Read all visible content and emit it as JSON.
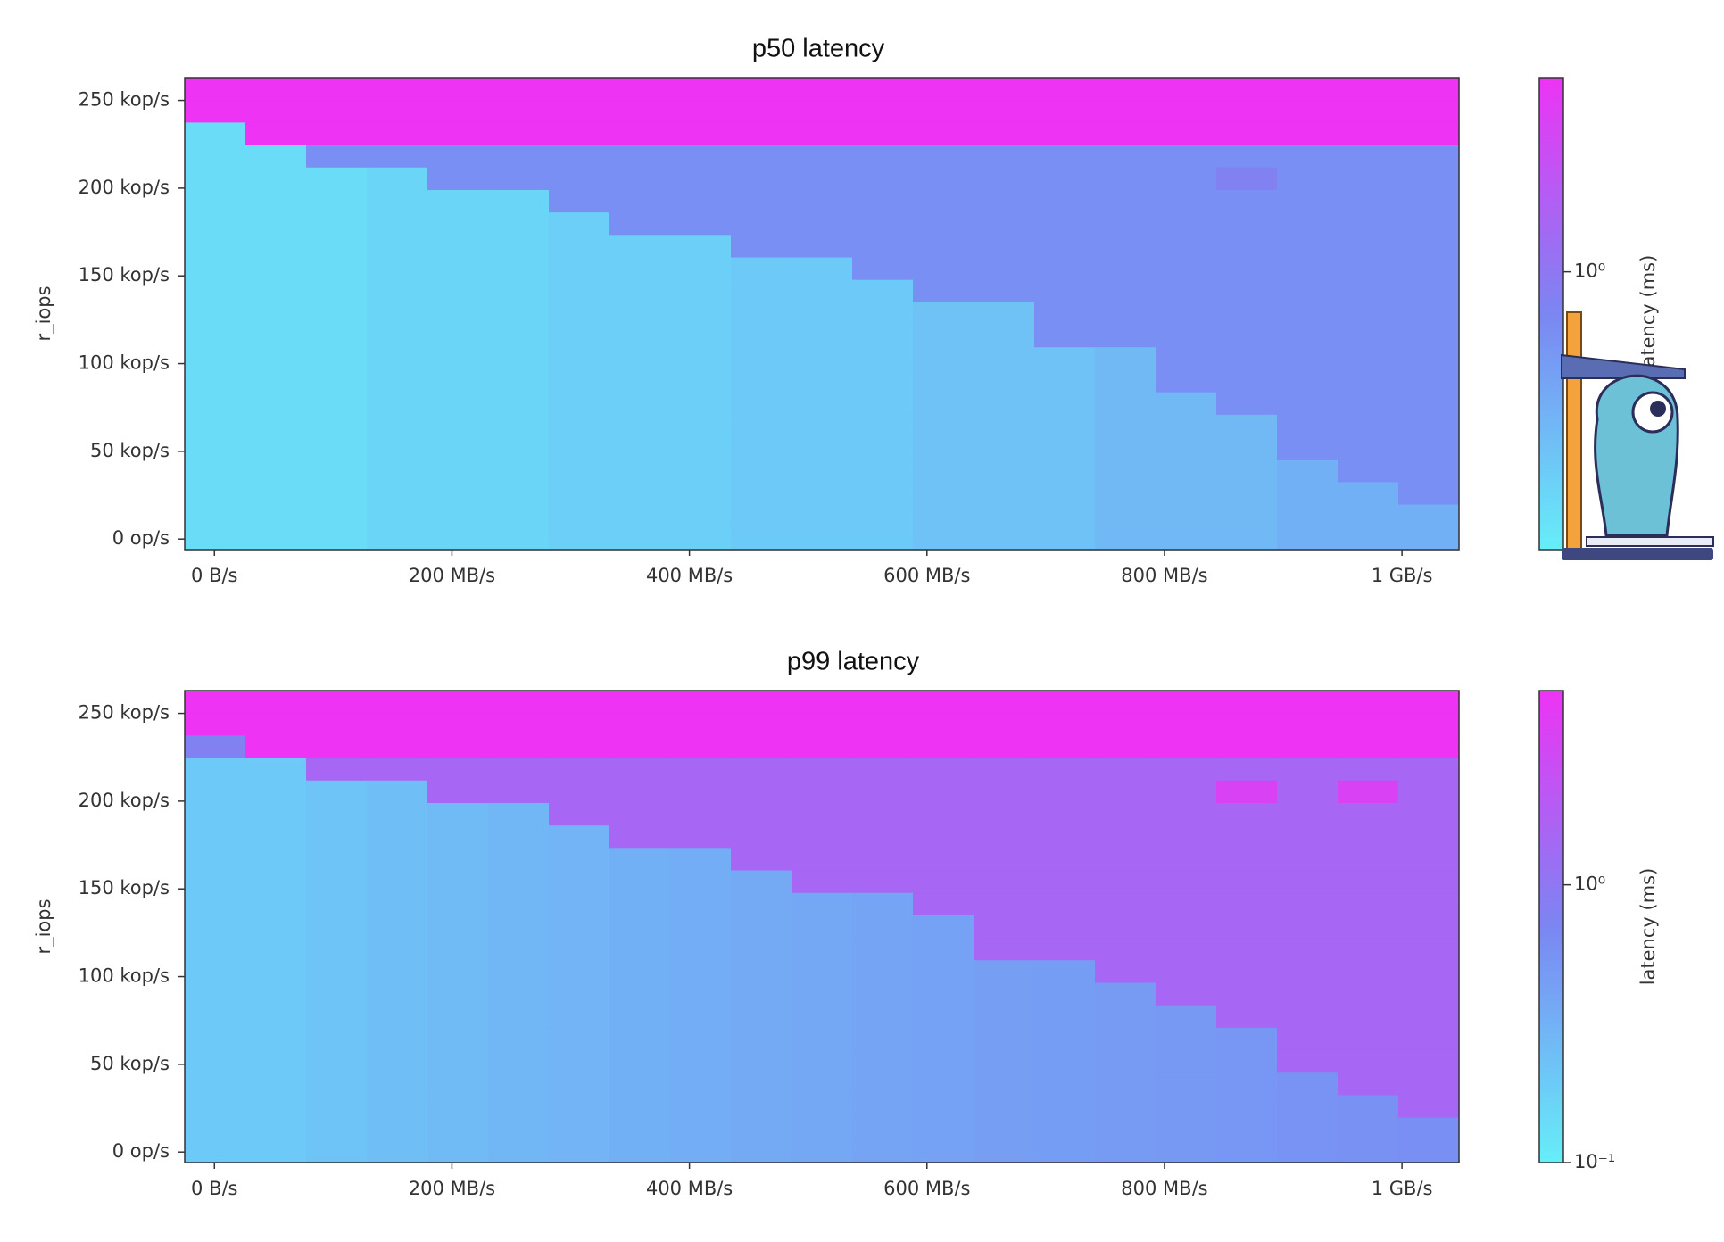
{
  "chart_data": [
    {
      "type": "heatmap",
      "title": "p50 latency",
      "ylabel": "r_iops",
      "clabel": "latency (ms)",
      "xlim": [
        -25,
        1048
      ],
      "ylim": [
        -6,
        263
      ],
      "xticks": [
        {
          "value": 0,
          "label": "0 B/s"
        },
        {
          "value": 200,
          "label": "200 MB/s"
        },
        {
          "value": 400,
          "label": "400 MB/s"
        },
        {
          "value": 600,
          "label": "600 MB/s"
        },
        {
          "value": 800,
          "label": "800 MB/s"
        },
        {
          "value": 1000,
          "label": "1 GB/s"
        }
      ],
      "yticks": [
        {
          "value": 0,
          "label": "0 op/s"
        },
        {
          "value": 50,
          "label": "50 kop/s"
        },
        {
          "value": 100,
          "label": "100 kop/s"
        },
        {
          "value": 150,
          "label": "150 kop/s"
        },
        {
          "value": 200,
          "label": "200 kop/s"
        },
        {
          "value": 250,
          "label": "250 kop/s"
        }
      ],
      "clim": [
        0.1,
        5
      ],
      "clog": true,
      "colormap": [
        "#66eef9",
        "#7b86f2",
        "#ee33f5"
      ],
      "cticks": [
        {
          "value": 1,
          "label": "10⁰"
        }
      ],
      "z": [
        [
          5,
          5,
          5,
          5,
          5,
          5,
          5,
          5,
          5,
          5,
          5,
          5,
          5,
          5,
          5,
          5,
          5,
          5,
          5,
          5,
          5
        ],
        [
          5,
          5,
          5,
          5,
          5,
          5,
          5,
          5,
          5,
          5,
          5,
          5,
          5,
          5,
          5,
          5,
          5,
          5,
          5,
          5,
          5
        ],
        [
          0.14,
          5,
          5,
          5,
          5,
          5,
          5,
          5,
          5,
          5,
          5,
          5,
          5,
          5,
          5,
          5,
          5,
          5,
          5,
          5,
          5
        ],
        [
          0.14,
          0.14,
          0.6,
          0.6,
          0.6,
          0.6,
          0.6,
          0.6,
          0.6,
          0.6,
          0.6,
          0.6,
          0.6,
          0.6,
          0.6,
          0.6,
          0.6,
          0.6,
          0.6,
          0.6,
          0.6
        ],
        [
          0.14,
          0.14,
          0.14,
          0.16,
          0.6,
          0.6,
          0.6,
          0.6,
          0.6,
          0.6,
          0.6,
          0.6,
          0.6,
          0.6,
          0.6,
          0.6,
          0.6,
          0.8,
          0.6,
          0.6,
          0.6
        ],
        [
          0.14,
          0.14,
          0.14,
          0.16,
          0.16,
          0.16,
          0.6,
          0.6,
          0.6,
          0.6,
          0.6,
          0.6,
          0.6,
          0.6,
          0.6,
          0.6,
          0.6,
          0.6,
          0.6,
          0.6,
          0.6
        ],
        [
          0.14,
          0.14,
          0.14,
          0.16,
          0.16,
          0.16,
          0.18,
          0.6,
          0.6,
          0.6,
          0.6,
          0.6,
          0.6,
          0.6,
          0.6,
          0.6,
          0.6,
          0.6,
          0.6,
          0.6,
          0.6
        ],
        [
          0.14,
          0.14,
          0.14,
          0.16,
          0.16,
          0.16,
          0.18,
          0.18,
          0.18,
          0.6,
          0.6,
          0.6,
          0.6,
          0.6,
          0.6,
          0.6,
          0.6,
          0.6,
          0.6,
          0.6,
          0.6
        ],
        [
          0.14,
          0.14,
          0.14,
          0.16,
          0.16,
          0.16,
          0.18,
          0.18,
          0.18,
          0.2,
          0.2,
          0.6,
          0.6,
          0.6,
          0.6,
          0.6,
          0.6,
          0.6,
          0.6,
          0.6,
          0.6
        ],
        [
          0.14,
          0.14,
          0.14,
          0.16,
          0.16,
          0.16,
          0.18,
          0.18,
          0.18,
          0.2,
          0.2,
          0.2,
          0.6,
          0.6,
          0.6,
          0.6,
          0.6,
          0.6,
          0.6,
          0.6,
          0.6
        ],
        [
          0.14,
          0.14,
          0.14,
          0.16,
          0.16,
          0.16,
          0.18,
          0.18,
          0.18,
          0.2,
          0.2,
          0.2,
          0.23,
          0.23,
          0.6,
          0.6,
          0.6,
          0.6,
          0.6,
          0.6,
          0.6
        ],
        [
          0.14,
          0.14,
          0.14,
          0.16,
          0.16,
          0.16,
          0.18,
          0.18,
          0.18,
          0.2,
          0.2,
          0.2,
          0.23,
          0.23,
          0.6,
          0.6,
          0.6,
          0.6,
          0.6,
          0.6,
          0.6
        ],
        [
          0.14,
          0.14,
          0.14,
          0.16,
          0.16,
          0.16,
          0.18,
          0.18,
          0.18,
          0.2,
          0.2,
          0.2,
          0.23,
          0.23,
          0.23,
          0.27,
          0.6,
          0.6,
          0.6,
          0.6,
          0.6
        ],
        [
          0.14,
          0.14,
          0.14,
          0.16,
          0.16,
          0.16,
          0.18,
          0.18,
          0.18,
          0.2,
          0.2,
          0.2,
          0.23,
          0.23,
          0.23,
          0.27,
          0.6,
          0.6,
          0.6,
          0.6,
          0.6
        ],
        [
          0.14,
          0.14,
          0.14,
          0.16,
          0.16,
          0.16,
          0.18,
          0.18,
          0.18,
          0.2,
          0.2,
          0.2,
          0.23,
          0.23,
          0.23,
          0.27,
          0.27,
          0.6,
          0.6,
          0.6,
          0.6
        ],
        [
          0.14,
          0.14,
          0.14,
          0.16,
          0.16,
          0.16,
          0.18,
          0.18,
          0.18,
          0.2,
          0.2,
          0.2,
          0.23,
          0.23,
          0.23,
          0.27,
          0.27,
          0.27,
          0.6,
          0.6,
          0.6
        ],
        [
          0.14,
          0.14,
          0.14,
          0.16,
          0.16,
          0.16,
          0.18,
          0.18,
          0.18,
          0.2,
          0.2,
          0.2,
          0.23,
          0.23,
          0.23,
          0.27,
          0.27,
          0.27,
          0.6,
          0.6,
          0.6
        ],
        [
          0.14,
          0.14,
          0.14,
          0.16,
          0.16,
          0.16,
          0.18,
          0.18,
          0.18,
          0.2,
          0.2,
          0.2,
          0.23,
          0.23,
          0.23,
          0.27,
          0.27,
          0.27,
          0.32,
          0.6,
          0.6
        ],
        [
          0.14,
          0.14,
          0.14,
          0.16,
          0.16,
          0.16,
          0.18,
          0.18,
          0.18,
          0.2,
          0.2,
          0.2,
          0.23,
          0.23,
          0.23,
          0.27,
          0.27,
          0.27,
          0.32,
          0.32,
          0.6
        ],
        [
          0.14,
          0.14,
          0.14,
          0.16,
          0.16,
          0.16,
          0.18,
          0.18,
          0.18,
          0.2,
          0.2,
          0.2,
          0.23,
          0.23,
          0.23,
          0.27,
          0.27,
          0.27,
          0.32,
          0.32,
          0.32
        ],
        [
          0.14,
          0.14,
          0.14,
          0.16,
          0.16,
          0.16,
          0.18,
          0.18,
          0.18,
          0.2,
          0.2,
          0.2,
          0.23,
          0.23,
          0.23,
          0.27,
          0.27,
          0.27,
          0.32,
          0.32,
          0.32
        ]
      ]
    },
    {
      "type": "heatmap",
      "title": "p99 latency",
      "ylabel": "r_iops",
      "clabel": "latency (ms)",
      "xlim": [
        -25,
        1048
      ],
      "ylim": [
        -6,
        263
      ],
      "xticks": [
        {
          "value": 0,
          "label": "0 B/s"
        },
        {
          "value": 200,
          "label": "200 MB/s"
        },
        {
          "value": 400,
          "label": "400 MB/s"
        },
        {
          "value": 600,
          "label": "600 MB/s"
        },
        {
          "value": 800,
          "label": "800 MB/s"
        },
        {
          "value": 1000,
          "label": "1 GB/s"
        }
      ],
      "yticks": [
        {
          "value": 0,
          "label": "0 op/s"
        },
        {
          "value": 50,
          "label": "50 kop/s"
        },
        {
          "value": 100,
          "label": "100 kop/s"
        },
        {
          "value": 150,
          "label": "150 kop/s"
        },
        {
          "value": 200,
          "label": "200 kop/s"
        },
        {
          "value": 250,
          "label": "250 kop/s"
        }
      ],
      "clim": [
        0.1,
        5
      ],
      "clog": true,
      "colormap": [
        "#66eef9",
        "#7b86f2",
        "#ee33f5"
      ],
      "cticks": [
        {
          "value": 0.1,
          "label": "10⁻¹"
        },
        {
          "value": 1,
          "label": "10⁰"
        }
      ],
      "z": [
        [
          5,
          5,
          5,
          5,
          5,
          5,
          5,
          5,
          5,
          5,
          5,
          5,
          5,
          5,
          5,
          5,
          5,
          5,
          5,
          5,
          5
        ],
        [
          5,
          5,
          5,
          5,
          5,
          5,
          5,
          5,
          5,
          5,
          5,
          5,
          5,
          5,
          5,
          5,
          5,
          5,
          5,
          5,
          5
        ],
        [
          0.8,
          5,
          5,
          5,
          5,
          5,
          5,
          5,
          5,
          5,
          5,
          5,
          5,
          5,
          5,
          5,
          5,
          5,
          5,
          5,
          5
        ],
        [
          0.2,
          0.2,
          1.5,
          1.5,
          1.5,
          1.5,
          1.5,
          1.5,
          1.5,
          1.5,
          1.5,
          1.5,
          1.5,
          1.5,
          1.5,
          1.5,
          1.5,
          1.5,
          1.5,
          1.5,
          1.5
        ],
        [
          0.2,
          0.2,
          0.22,
          0.24,
          1.5,
          1.5,
          1.5,
          1.5,
          1.5,
          1.5,
          1.5,
          1.5,
          1.5,
          1.5,
          1.5,
          1.5,
          1.5,
          3.5,
          1.5,
          3.5,
          1.5
        ],
        [
          0.2,
          0.2,
          0.22,
          0.24,
          0.26,
          0.28,
          1.5,
          1.5,
          1.5,
          1.5,
          1.5,
          1.5,
          1.5,
          1.5,
          1.5,
          1.5,
          1.5,
          1.5,
          1.5,
          1.5,
          1.5
        ],
        [
          0.2,
          0.2,
          0.22,
          0.24,
          0.26,
          0.28,
          0.3,
          1.5,
          1.5,
          1.5,
          1.5,
          1.5,
          1.5,
          1.5,
          1.5,
          1.5,
          1.5,
          1.5,
          1.5,
          1.5,
          1.5
        ],
        [
          0.2,
          0.2,
          0.22,
          0.24,
          0.26,
          0.28,
          0.3,
          0.32,
          0.34,
          1.5,
          1.5,
          1.5,
          1.5,
          1.5,
          1.5,
          1.5,
          1.5,
          1.5,
          1.5,
          1.5,
          1.5
        ],
        [
          0.2,
          0.2,
          0.22,
          0.24,
          0.26,
          0.28,
          0.3,
          0.32,
          0.34,
          0.36,
          1.5,
          1.5,
          1.5,
          1.5,
          1.5,
          1.5,
          1.5,
          1.5,
          1.5,
          1.5,
          1.5
        ],
        [
          0.2,
          0.2,
          0.22,
          0.24,
          0.26,
          0.28,
          0.3,
          0.32,
          0.34,
          0.36,
          0.38,
          0.4,
          1.5,
          1.5,
          1.5,
          1.5,
          1.5,
          1.5,
          1.5,
          1.5,
          1.5
        ],
        [
          0.2,
          0.2,
          0.22,
          0.24,
          0.26,
          0.28,
          0.3,
          0.32,
          0.34,
          0.36,
          0.38,
          0.4,
          0.42,
          1.5,
          1.5,
          1.5,
          1.5,
          1.5,
          1.5,
          1.5,
          1.5
        ],
        [
          0.2,
          0.2,
          0.22,
          0.24,
          0.26,
          0.28,
          0.3,
          0.32,
          0.34,
          0.36,
          0.38,
          0.4,
          0.42,
          1.5,
          1.5,
          1.5,
          1.5,
          1.5,
          1.5,
          1.5,
          1.5
        ],
        [
          0.2,
          0.2,
          0.22,
          0.24,
          0.26,
          0.28,
          0.3,
          0.32,
          0.34,
          0.36,
          0.38,
          0.4,
          0.42,
          0.44,
          0.46,
          1.5,
          1.5,
          1.5,
          1.5,
          1.5,
          1.5
        ],
        [
          0.2,
          0.2,
          0.22,
          0.24,
          0.26,
          0.28,
          0.3,
          0.32,
          0.34,
          0.36,
          0.38,
          0.4,
          0.42,
          0.44,
          0.46,
          0.48,
          1.5,
          1.5,
          1.5,
          1.5,
          1.5
        ],
        [
          0.2,
          0.2,
          0.22,
          0.24,
          0.26,
          0.28,
          0.3,
          0.32,
          0.34,
          0.36,
          0.38,
          0.4,
          0.42,
          0.44,
          0.46,
          0.48,
          0.5,
          1.5,
          1.5,
          1.5,
          1.5
        ],
        [
          0.2,
          0.2,
          0.22,
          0.24,
          0.26,
          0.28,
          0.3,
          0.32,
          0.34,
          0.36,
          0.38,
          0.4,
          0.42,
          0.44,
          0.46,
          0.48,
          0.5,
          0.52,
          1.5,
          1.5,
          1.5
        ],
        [
          0.2,
          0.2,
          0.22,
          0.24,
          0.26,
          0.28,
          0.3,
          0.32,
          0.34,
          0.36,
          0.38,
          0.4,
          0.42,
          0.44,
          0.46,
          0.48,
          0.5,
          0.52,
          1.5,
          1.5,
          1.5
        ],
        [
          0.2,
          0.2,
          0.22,
          0.24,
          0.26,
          0.28,
          0.3,
          0.32,
          0.34,
          0.36,
          0.38,
          0.4,
          0.42,
          0.44,
          0.46,
          0.48,
          0.5,
          0.52,
          0.55,
          1.5,
          1.5
        ],
        [
          0.2,
          0.2,
          0.22,
          0.24,
          0.26,
          0.28,
          0.3,
          0.32,
          0.34,
          0.36,
          0.38,
          0.4,
          0.42,
          0.44,
          0.46,
          0.48,
          0.5,
          0.52,
          0.55,
          0.58,
          1.5
        ],
        [
          0.2,
          0.2,
          0.22,
          0.24,
          0.26,
          0.28,
          0.3,
          0.32,
          0.34,
          0.36,
          0.38,
          0.4,
          0.42,
          0.44,
          0.46,
          0.48,
          0.5,
          0.52,
          0.55,
          0.58,
          0.6
        ],
        [
          0.2,
          0.2,
          0.22,
          0.24,
          0.26,
          0.28,
          0.3,
          0.32,
          0.34,
          0.36,
          0.38,
          0.4,
          0.42,
          0.44,
          0.46,
          0.48,
          0.5,
          0.52,
          0.55,
          0.58,
          0.6
        ]
      ]
    }
  ]
}
